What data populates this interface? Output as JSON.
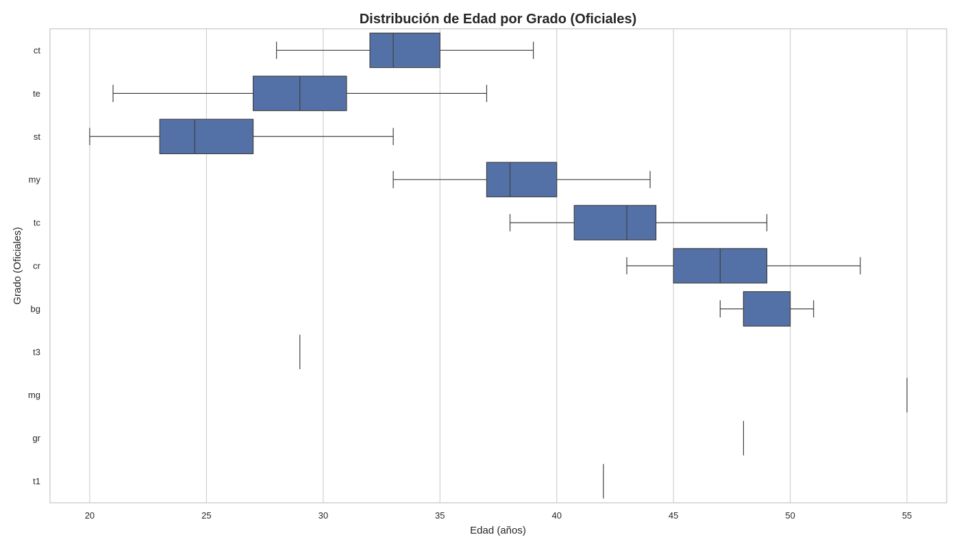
{
  "chart_data": {
    "type": "boxplot",
    "orientation": "horizontal",
    "title": "Distribución de Edad por Grado (Oficiales)",
    "xlabel": "Edad (años)",
    "ylabel": "Grado (Oficiales)",
    "xlim": [
      18.3,
      56.7
    ],
    "xticks": [
      20,
      25,
      30,
      35,
      40,
      45,
      50,
      55
    ],
    "grid": "vertical",
    "box_color": "#5471a7",
    "line_color": "#3f3f3f",
    "categories": [
      "ct",
      "te",
      "st",
      "my",
      "tc",
      "cr",
      "bg",
      "t3",
      "mg",
      "gr",
      "t1"
    ],
    "boxes": [
      {
        "category": "ct",
        "whislo": 28,
        "q1": 32,
        "med": 33,
        "q3": 35,
        "whishi": 39
      },
      {
        "category": "te",
        "whislo": 21,
        "q1": 27,
        "med": 29,
        "q3": 31,
        "whishi": 37
      },
      {
        "category": "st",
        "whislo": 20,
        "q1": 23,
        "med": 24.5,
        "q3": 27,
        "whishi": 33
      },
      {
        "category": "my",
        "whislo": 33,
        "q1": 37,
        "med": 38,
        "q3": 40,
        "whishi": 44
      },
      {
        "category": "tc",
        "whislo": 38,
        "q1": 40.75,
        "med": 43,
        "q3": 44.25,
        "whishi": 49
      },
      {
        "category": "cr",
        "whislo": 43,
        "q1": 45,
        "med": 47,
        "q3": 49,
        "whishi": 53
      },
      {
        "category": "bg",
        "whislo": 47,
        "q1": 48,
        "med": 48,
        "q3": 50,
        "whishi": 51
      },
      {
        "category": "t3",
        "whislo": 29,
        "q1": 29,
        "med": 29,
        "q3": 29,
        "whishi": 29
      },
      {
        "category": "mg",
        "whislo": 55,
        "q1": 55,
        "med": 55,
        "q3": 55,
        "whishi": 55
      },
      {
        "category": "gr",
        "whislo": 48,
        "q1": 48,
        "med": 48,
        "q3": 48,
        "whishi": 48
      },
      {
        "category": "t1",
        "whislo": 42,
        "q1": 42,
        "med": 42,
        "q3": 42,
        "whishi": 42
      }
    ]
  }
}
